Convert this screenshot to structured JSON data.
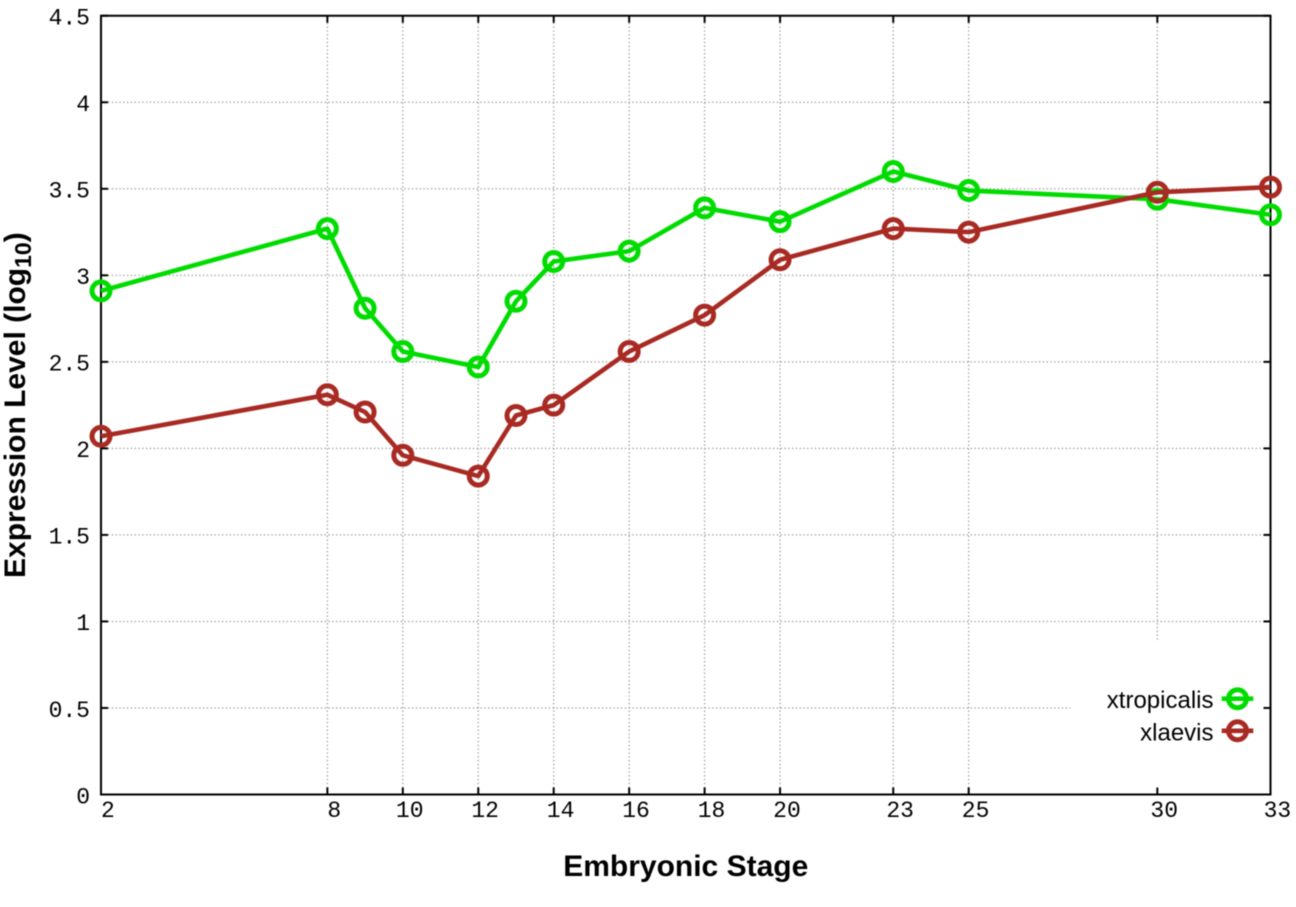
{
  "chart_data": {
    "type": "line",
    "title": "",
    "xlabel": "Embryonic Stage",
    "ylabel": "Expression Level (log10)",
    "ylabel_main": "Expression Level (log",
    "ylabel_subscript": "10",
    "ylabel_close": ")",
    "xlim": [
      2,
      33
    ],
    "ylim": [
      0,
      4.5
    ],
    "grid": true,
    "legend_position": "inside-right-bottom",
    "x": [
      2,
      8,
      9,
      10,
      12,
      13,
      14,
      16,
      18,
      20,
      23,
      25,
      30,
      33
    ],
    "series": [
      {
        "name": "xtropicalis",
        "color": "#00DC00",
        "marker": "open-circle",
        "values": [
          2.91,
          3.27,
          2.81,
          2.56,
          2.47,
          2.85,
          3.08,
          3.14,
          3.39,
          3.31,
          3.6,
          3.49,
          3.44,
          3.35
        ]
      },
      {
        "name": "xlaevis",
        "color": "#A82A23",
        "marker": "open-circle",
        "values": [
          2.07,
          2.31,
          2.21,
          1.96,
          1.84,
          2.19,
          2.25,
          2.56,
          2.77,
          3.09,
          3.27,
          3.25,
          3.48,
          3.51
        ]
      }
    ],
    "xticks": {
      "values": [
        2,
        8,
        10,
        12,
        14,
        16,
        18,
        20,
        23,
        25,
        30,
        33
      ],
      "labels": [
        "2",
        "8",
        "10",
        "12",
        "14",
        "16",
        "18",
        "20",
        "23",
        "25",
        "30",
        "33"
      ]
    },
    "yticks": {
      "values": [
        0,
        0.5,
        1,
        1.5,
        2,
        2.5,
        3,
        3.5,
        4,
        4.5
      ],
      "labels": [
        "0",
        "0.5",
        "1",
        "1.5",
        "2",
        "2.5",
        "3",
        "3.5",
        "4",
        "4.5"
      ]
    },
    "colors": {
      "background": "#ffffff",
      "border": "#000000",
      "grid": "#a0a0a0",
      "text": "#000000"
    }
  }
}
